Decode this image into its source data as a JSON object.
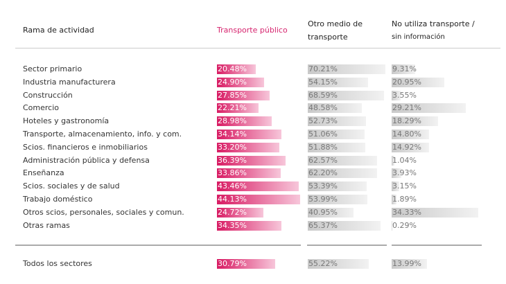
{
  "chart_data": {
    "type": "table",
    "headers": {
      "rama": "Rama de actividad",
      "tp": "Transporte público",
      "otro_1": "Otro medio de",
      "otro_2": "transporte",
      "no_1": "No utiliza transporte /",
      "no_2": "sin información"
    },
    "rows": [
      {
        "label": "Sector primario",
        "tp": "20.48%",
        "otro": "70.21%",
        "no": "9.31%"
      },
      {
        "label": "Industria manufacturera",
        "tp": "24.90%",
        "otro": "54.15%",
        "no": "20.95%"
      },
      {
        "label": "Construcción",
        "tp": "27.85%",
        "otro": "68.59%",
        "no": "3.55%"
      },
      {
        "label": "Comercio",
        "tp": "22.21%",
        "otro": "48.58%",
        "no": "29.21%"
      },
      {
        "label": "Hoteles y gastronomía",
        "tp": "28.98%",
        "otro": "52.73%",
        "no": "18.29%"
      },
      {
        "label": "Transporte, almacenamiento, info. y com.",
        "tp": "34.14%",
        "otro": "51.06%",
        "no": "14.80%"
      },
      {
        "label": "Scios. financieros e inmobiliarios",
        "tp": "33.20%",
        "otro": "51.88%",
        "no": "14.92%"
      },
      {
        "label": "Administración pública y defensa",
        "tp": "36.39%",
        "otro": "62.57%",
        "no": "1.04%"
      },
      {
        "label": "Enseñanza",
        "tp": "33.86%",
        "otro": "62.20%",
        "no": "3.93%"
      },
      {
        "label": "Scios. sociales y de salud",
        "tp": "43.46%",
        "otro": "53.39%",
        "no": "3.15%"
      },
      {
        "label": "Trabajo doméstico",
        "tp": "44.13%",
        "otro": "53.99%",
        "no": "1.89%"
      },
      {
        "label": "Otros scios, personales, sociales y comun.",
        "tp": "24.72%",
        "otro": "40.95%",
        "no": "34.33%"
      },
      {
        "label": "Otras ramas",
        "tp": "34.35%",
        "otro": "65.37%",
        "no": "0.29%"
      }
    ],
    "total": {
      "label": "Todos los sectores",
      "tp": "30.79%",
      "otro": "55.22%",
      "no": "13.99%"
    },
    "colors": {
      "tp": "#d81b63",
      "otro": "#c9c9c9",
      "no": "#c9c9c9"
    }
  }
}
